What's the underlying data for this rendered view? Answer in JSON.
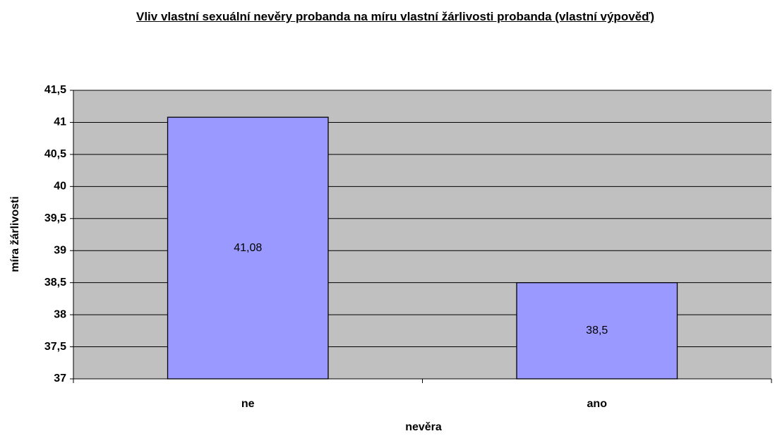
{
  "chart_data": {
    "type": "bar",
    "title": "Vliv vlastní sexuální nevěry probanda na míru vlastní žárlivosti  probanda (vlastní výpověď)",
    "x_label": "nevěra",
    "y_label": "míra žárlivosti",
    "categories": [
      "ne",
      "ano"
    ],
    "values": [
      41.08,
      38.5
    ],
    "value_labels": [
      "41,08",
      "38,5"
    ],
    "color": "#9999ff",
    "ylim": [
      37,
      41.5
    ],
    "yticks": [
      37,
      {
        "value": 37.5,
        "label": "37,5"
      },
      38,
      {
        "value": 38.5,
        "label": "38,5"
      },
      39,
      {
        "value": 39.5,
        "label": "39,5"
      },
      40,
      {
        "value": 40.5,
        "label": "40,5"
      },
      41,
      {
        "value": 41.5,
        "label": "41,5"
      }
    ],
    "grid": true
  }
}
